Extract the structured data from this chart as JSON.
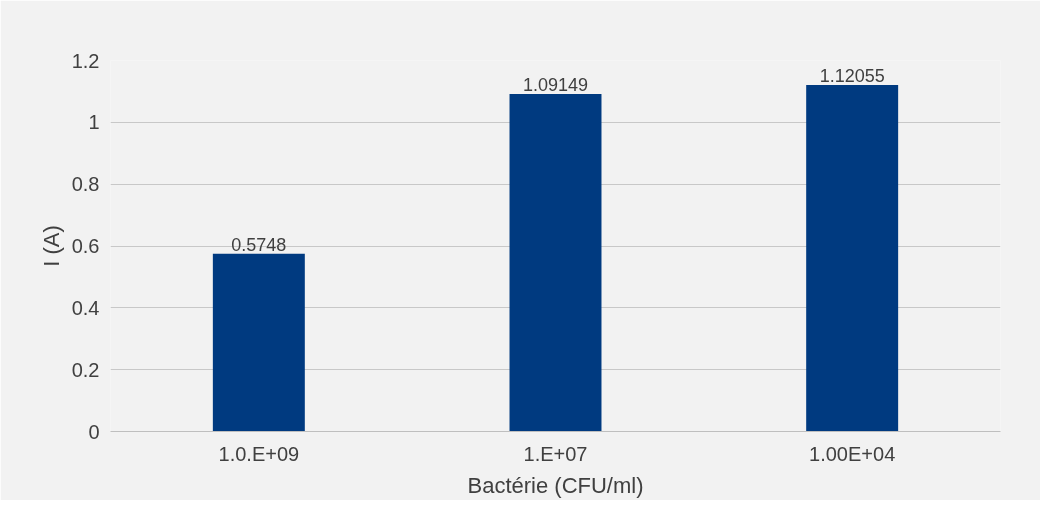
{
  "chart_data": {
    "type": "bar",
    "xlabel": "Bactérie (CFU/ml)",
    "ylabel": "I (A)",
    "categories": [
      "1.0.E+09",
      "1.E+07",
      "1.00E+04"
    ],
    "values": [
      0.5748,
      1.09149,
      1.12055
    ],
    "color": "#003a80",
    "ylim": [
      0,
      1.2
    ],
    "yticks": [
      0,
      0.2,
      0.4,
      0.6,
      0.8,
      1,
      1.2
    ],
    "grid": "y",
    "data_labels": true
  }
}
